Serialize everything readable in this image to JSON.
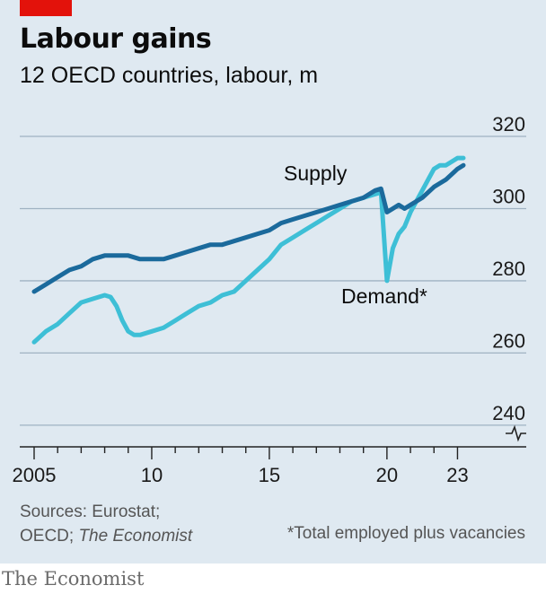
{
  "header": {
    "title": "Labour gains",
    "subtitle": "12 OECD countries, labour, m"
  },
  "footer": {
    "sources_line1": "Sources: Eurostat;",
    "sources_line2_prefix": "OECD; ",
    "sources_line2_italic": "The Economist",
    "footnote": "*Total employed plus vacancies",
    "brand": "The Economist"
  },
  "colors": {
    "background": "#dfe9f1",
    "gridline": "#9fb2c2",
    "supply": "#1b6a9c",
    "demand": "#3ebfd6",
    "accent_red": "#e3120b"
  },
  "chart_data": {
    "type": "line",
    "title": "Labour gains",
    "subtitle": "12 OECD countries, labour, m",
    "xlabel": "",
    "ylabel": "",
    "xlim": [
      2004.5,
      2023.5
    ],
    "ylim": [
      234,
      320
    ],
    "axis_break": true,
    "x_ticks": [
      2005,
      2010,
      2015,
      2020,
      2023
    ],
    "x_tick_labels": [
      "2005",
      "10",
      "15",
      "20",
      "23"
    ],
    "y_ticks": [
      240,
      260,
      280,
      300,
      320
    ],
    "y_tick_labels": [
      "240",
      "260",
      "280",
      "300",
      "320"
    ],
    "grid": true,
    "series": [
      {
        "name": "Supply",
        "color": "#1b6a9c",
        "x": [
          2005.0,
          2005.5,
          2006.0,
          2006.5,
          2007.0,
          2007.5,
          2008.0,
          2008.5,
          2009.0,
          2009.5,
          2010.0,
          2010.5,
          2011.0,
          2011.5,
          2012.0,
          2012.5,
          2013.0,
          2013.5,
          2014.0,
          2014.5,
          2015.0,
          2015.5,
          2016.0,
          2016.5,
          2017.0,
          2017.5,
          2018.0,
          2018.5,
          2019.0,
          2019.5,
          2019.75,
          2020.0,
          2020.25,
          2020.5,
          2020.75,
          2021.0,
          2021.5,
          2022.0,
          2022.5,
          2023.0,
          2023.25
        ],
        "y": [
          277,
          279,
          281,
          283,
          284,
          286,
          287,
          287,
          287,
          286,
          286,
          286,
          287,
          288,
          289,
          290,
          290,
          291,
          292,
          293,
          294,
          296,
          297,
          298,
          299,
          300,
          301,
          302,
          303,
          305,
          305.5,
          299,
          300,
          301,
          300,
          301,
          303,
          306,
          308,
          311,
          312
        ],
        "label_position": "above line near 2018"
      },
      {
        "name": "Demand*",
        "color": "#3ebfd6",
        "x": [
          2005.0,
          2005.5,
          2006.0,
          2006.5,
          2007.0,
          2007.5,
          2008.0,
          2008.25,
          2008.5,
          2008.75,
          2009.0,
          2009.25,
          2009.5,
          2009.75,
          2010.0,
          2010.5,
          2011.0,
          2011.5,
          2012.0,
          2012.5,
          2013.0,
          2013.5,
          2014.0,
          2014.5,
          2015.0,
          2015.5,
          2016.0,
          2016.5,
          2017.0,
          2017.5,
          2018.0,
          2018.5,
          2019.0,
          2019.5,
          2019.75,
          2020.0,
          2020.25,
          2020.5,
          2020.75,
          2021.0,
          2021.25,
          2021.5,
          2021.75,
          2022.0,
          2022.25,
          2022.5,
          2022.75,
          2023.0,
          2023.25
        ],
        "y": [
          263,
          266,
          268,
          271,
          274,
          275,
          276,
          275.5,
          273,
          269,
          266,
          265,
          265,
          265.5,
          266,
          267,
          269,
          271,
          273,
          274,
          276,
          277,
          280,
          283,
          286,
          290,
          292,
          294,
          296,
          298,
          300,
          302,
          303,
          304,
          304.5,
          280,
          289,
          293,
          295,
          299,
          302,
          305,
          308,
          311,
          312,
          312,
          313,
          314,
          314
        ],
        "label_position": "below dip near 2020"
      }
    ]
  }
}
